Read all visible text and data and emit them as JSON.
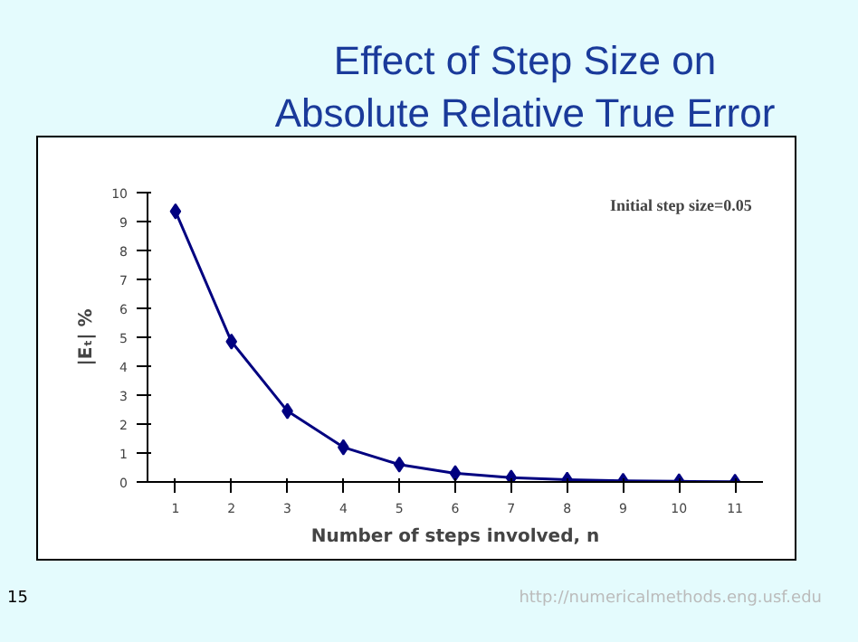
{
  "chart_data": {
    "type": "line",
    "title": "Effect of Step Size on Absolute Relative True Error",
    "categories": [
      "1",
      "2",
      "3",
      "4",
      "5",
      "6",
      "7",
      "8",
      "9",
      "10",
      "11"
    ],
    "series": [
      {
        "color": "#000080",
        "values": [
          9.35,
          4.85,
          2.45,
          1.2,
          0.6,
          0.3,
          0.15,
          0.08,
          0.04,
          0.02,
          0.01
        ]
      }
    ],
    "xlabel": "Number of steps involved, n",
    "ylabel": "|Eₜ| %",
    "ylim": [
      0,
      10
    ],
    "yticks": [
      0,
      1,
      2,
      3,
      4,
      5,
      6,
      7,
      8,
      9,
      10
    ],
    "marker": "diamond",
    "grid": false,
    "annotations": [
      "Initial step size=0.05",
      "15",
      "http://numericalmethods.eng.usf.edu"
    ]
  }
}
